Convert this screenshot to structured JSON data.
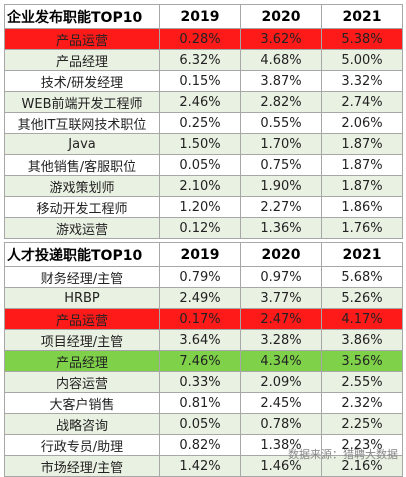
{
  "chart_data": [
    {
      "type": "table",
      "title": "企业发布职能TOP10",
      "columns": [
        "2019",
        "2020",
        "2021"
      ],
      "header_bg": "#ffffff",
      "rows": [
        {
          "label": "产品运营",
          "values": [
            "0.28%",
            "3.62%",
            "5.38%"
          ],
          "highlight": "#ff1a1a"
        },
        {
          "label": "产品经理",
          "values": [
            "6.32%",
            "4.68%",
            "5.00%"
          ]
        },
        {
          "label": "技术/研发经理",
          "values": [
            "0.15%",
            "3.87%",
            "3.32%"
          ]
        },
        {
          "label": "WEB前端开发工程师",
          "values": [
            "2.46%",
            "2.82%",
            "2.74%"
          ]
        },
        {
          "label": "其他IT互联网技术职位",
          "values": [
            "0.25%",
            "0.55%",
            "2.06%"
          ]
        },
        {
          "label": "Java",
          "values": [
            "1.50%",
            "1.70%",
            "1.87%"
          ]
        },
        {
          "label": "其他销售/客服职位",
          "values": [
            "0.05%",
            "0.75%",
            "1.87%"
          ]
        },
        {
          "label": "游戏策划师",
          "values": [
            "2.10%",
            "1.90%",
            "1.87%"
          ]
        },
        {
          "label": "移动开发工程师",
          "values": [
            "1.20%",
            "2.27%",
            "1.86%"
          ]
        },
        {
          "label": "游戏运营",
          "values": [
            "0.12%",
            "1.36%",
            "1.76%"
          ]
        }
      ]
    },
    {
      "type": "table",
      "title": "人才投递职能TOP10",
      "columns": [
        "2019",
        "2020",
        "2021"
      ],
      "rows": [
        {
          "label": "财务经理/主管",
          "values": [
            "0.79%",
            "0.97%",
            "5.68%"
          ]
        },
        {
          "label": "HRBP",
          "values": [
            "2.49%",
            "3.77%",
            "5.26%"
          ]
        },
        {
          "label": "产品运营",
          "values": [
            "0.17%",
            "2.47%",
            "4.17%"
          ],
          "highlight": "#ff1a1a"
        },
        {
          "label": "项目经理/主管",
          "values": [
            "3.64%",
            "3.28%",
            "3.86%"
          ]
        },
        {
          "label": "产品经理",
          "values": [
            "7.46%",
            "4.34%",
            "3.56%"
          ],
          "highlight": "#7fd14a"
        },
        {
          "label": "内容运营",
          "values": [
            "0.33%",
            "2.09%",
            "2.55%"
          ]
        },
        {
          "label": "大客户销售",
          "values": [
            "0.81%",
            "2.45%",
            "2.32%"
          ]
        },
        {
          "label": "战略咨询",
          "values": [
            "0.05%",
            "0.78%",
            "2.25%"
          ]
        },
        {
          "label": "行政专员/助理",
          "values": [
            "0.82%",
            "1.38%",
            "2.23%"
          ]
        },
        {
          "label": "市场经理/主管",
          "values": [
            "1.42%",
            "1.46%",
            "2.16%"
          ]
        }
      ]
    }
  ],
  "source": "数据来源：猎聘大数据",
  "colors": {
    "alt_row": "#e9f1e2",
    "border": "#a7a7a7"
  }
}
